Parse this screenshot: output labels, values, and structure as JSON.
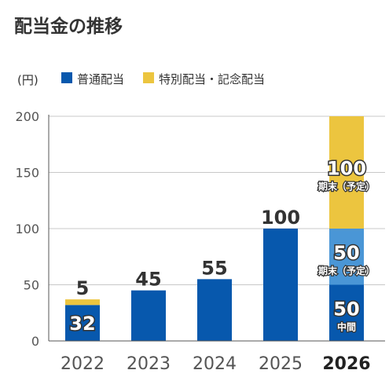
{
  "title": "配当金の推移",
  "colors": {
    "regular": "#0758ad",
    "regular_forecast": "#4a96d6",
    "special": "#ecc53f",
    "axis": "#555555",
    "grid": "#c8c8c8",
    "text": "#333333"
  },
  "chart_data": {
    "type": "bar",
    "stacked": true,
    "unit_label": "(円)",
    "categories": [
      "2022",
      "2023",
      "2024",
      "2025",
      "2026"
    ],
    "highlight_category": "2026",
    "ylim": [
      0,
      200
    ],
    "yticks": [
      0,
      50,
      100,
      150,
      200
    ],
    "grid": true,
    "legend_position": "top-left",
    "legend": [
      {
        "label": "普通配当",
        "color": "#0758ad"
      },
      {
        "label": "特別配当・記念配当",
        "color": "#ecc53f"
      }
    ],
    "stacks": [
      {
        "category": "2022",
        "segments": [
          {
            "value": 32,
            "color": "#0758ad",
            "label": "32",
            "label_pos": "inside"
          },
          {
            "value": 5,
            "color": "#ecc53f",
            "label": "5",
            "label_pos": "above"
          }
        ]
      },
      {
        "category": "2023",
        "segments": [
          {
            "value": 45,
            "color": "#0758ad",
            "label": "45",
            "label_pos": "above"
          }
        ]
      },
      {
        "category": "2024",
        "segments": [
          {
            "value": 55,
            "color": "#0758ad",
            "label": "55",
            "label_pos": "above"
          }
        ]
      },
      {
        "category": "2025",
        "segments": [
          {
            "value": 100,
            "color": "#0758ad",
            "label": "100",
            "label_pos": "above"
          }
        ]
      },
      {
        "category": "2026",
        "segments": [
          {
            "value": 50,
            "color": "#0758ad",
            "label": "50",
            "sublabel": "中間",
            "label_pos": "inside"
          },
          {
            "value": 50,
            "color": "#4a96d6",
            "label": "50",
            "sublabel": "期末（予定）",
            "label_pos": "inside"
          },
          {
            "value": 100,
            "color": "#ecc53f",
            "label": "100",
            "sublabel": "期末（予定）",
            "label_pos": "inside"
          }
        ]
      }
    ]
  }
}
